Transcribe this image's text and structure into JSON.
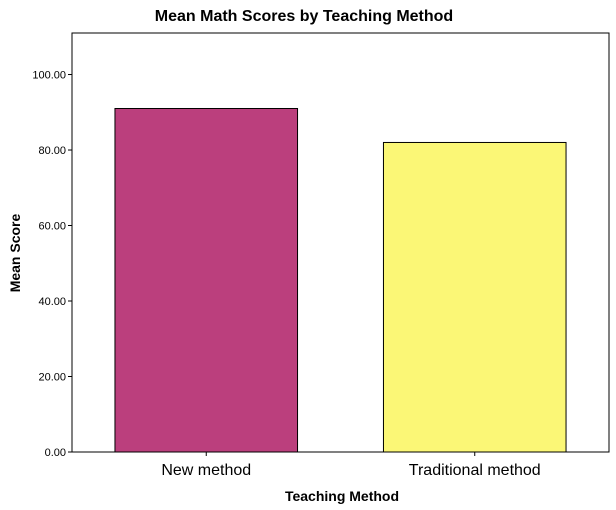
{
  "chart_data": {
    "type": "bar",
    "title": "Mean Math Scores by Teaching Method",
    "xlabel": "Teaching Method",
    "ylabel": "Mean Score",
    "categories": [
      "New method",
      "Traditional method"
    ],
    "values": [
      91.0,
      82.0
    ],
    "ylim": [
      0,
      111
    ],
    "yticks": [
      0,
      20,
      40,
      60,
      80,
      100
    ],
    "ytick_labels": [
      "0.00",
      "20.00",
      "40.00",
      "60.00",
      "80.00",
      "100.00"
    ],
    "grid": false,
    "legend": "none",
    "bar_colors": [
      "#bb3f7d",
      "#fbf776"
    ],
    "bar_outline_color": "#000000",
    "plot_background": "#ffffff"
  }
}
